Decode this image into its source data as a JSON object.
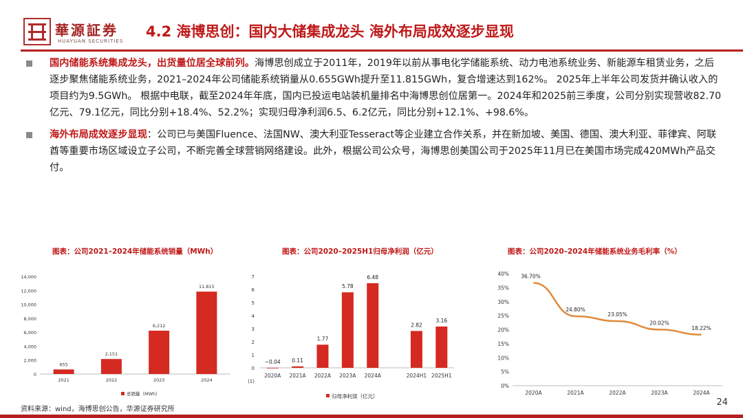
{
  "header": {
    "logo_cn": "華源証券",
    "logo_en": "HUAYUAN SECURITIES",
    "title": "4.2 海博思创：国内大储集成龙头  海外布局成效逐步显现"
  },
  "paragraphs": [
    {
      "highlight": "国内储能系统集成龙头，出货量位居全球前列。",
      "text": "海博思创成立于2011年，2019年以前从事电化学储能系统、动力电池系统业务、新能源车租赁业务，之后逐步聚焦储能系统业务，2021–2024年公司储能系统销量从0.655GWh提升至11.815GWh，复合增速达到162%。 2025年上半年公司发货并确认收入的项目约为9.5GWh。 根据中电联，截至2024年年底，国内已投运电站装机量排名中海博思创位居第一。2024年和2025前三季度，公司分别实现营收82.70亿元、79.1亿元，同比分别+18.4%、52.2%；实现归母净利润6.5、6.2亿元，同比分别+12.1%、+98.6%。"
    },
    {
      "highlight": "海外布局成效逐步显现",
      "text": "：公司已与美国Fluence、法国NW、澳大利亚Tesseract等企业建立合作关系，并在新加坡、美国、德国、澳大利亚、菲律宾、阿联酋等重要市场区域设立子公司，不断完善全球营销网络建设。此外，根据公司公众号，海博思创美国公司于2025年11月已在美国市场完成420MWh产品交付。"
    }
  ],
  "colors": {
    "accent": "#c01818",
    "bar": "#d42a22",
    "line": "#e0893a"
  },
  "chart_data": [
    {
      "type": "bar",
      "title": "图表：公司2021–2024年储能系统销量（MWh）",
      "categories": [
        "2021",
        "2022",
        "2023",
        "2024"
      ],
      "series": [
        {
          "name": "总销量（MWh）",
          "values": [
            655,
            2151,
            6212,
            11815
          ]
        }
      ],
      "data_labels": [
        "655",
        "2,151",
        "6,212",
        "11,815"
      ],
      "ylim": [
        0,
        14000
      ],
      "yticks": [
        0,
        2000,
        4000,
        6000,
        8000,
        10000,
        12000,
        14000
      ],
      "ytick_labels": [
        "0",
        "2,000",
        "4,000",
        "6,000",
        "8,000",
        "10,000",
        "12,000",
        "14,000"
      ],
      "legend": "bottom"
    },
    {
      "type": "bar",
      "title": "图表：公司2020–2025H1归母净利润（亿元）",
      "categories": [
        "2020A",
        "2021A",
        "2022A",
        "2023A",
        "2024A",
        "2024H1",
        "2025H1"
      ],
      "series": [
        {
          "name": "归母净利润（亿元）",
          "values": [
            -0.04,
            0.11,
            1.77,
            5.78,
            6.48,
            2.82,
            3.16
          ]
        }
      ],
      "data_labels": [
        "−0.04",
        "0.11",
        "1.77",
        "5.78",
        "6.48",
        "2.82",
        "3.16"
      ],
      "ylim": [
        -1,
        7
      ],
      "yticks": [
        -1,
        0,
        1,
        2,
        3,
        4,
        5,
        6,
        7
      ],
      "ytick_labels": [
        "(1)",
        "0",
        "1",
        "2",
        "3",
        "4",
        "5",
        "6",
        "7"
      ],
      "legend": "bottom"
    },
    {
      "type": "line",
      "title": "图表：公司2020–2024年储能系统业务毛利率（%）",
      "categories": [
        "2020A",
        "2021A",
        "2022A",
        "2023A",
        "2024A"
      ],
      "series": [
        {
          "values": [
            36.7,
            24.8,
            23.05,
            20.02,
            18.22
          ]
        }
      ],
      "data_labels": [
        "36.70%",
        "24.80%",
        "23.05%",
        "20.02%",
        "18.22%"
      ],
      "ylim": [
        0,
        40
      ],
      "yticks": [
        0,
        5,
        10,
        15,
        20,
        25,
        30,
        35,
        40
      ],
      "ytick_labels": [
        "0%",
        "5%",
        "10%",
        "15%",
        "20%",
        "25%",
        "30%",
        "35%",
        "40%"
      ]
    }
  ],
  "footer": {
    "source": "资料来源：wind，海博思创公告，华源证券研究所",
    "page": "24"
  }
}
